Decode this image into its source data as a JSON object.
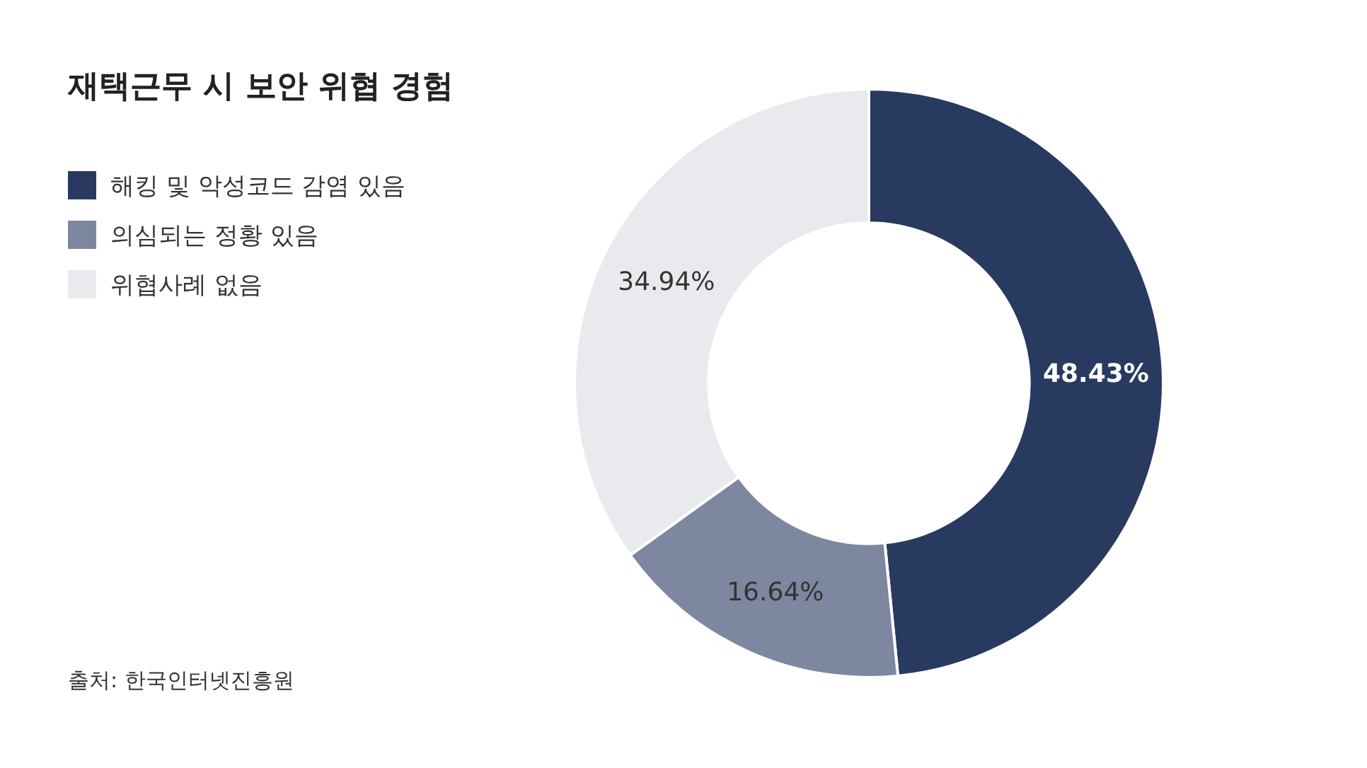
{
  "chart_data": {
    "type": "donut",
    "title": "재택근무 시 보안 위협 경험",
    "categories": [
      "해킹 및 악성코드 감염 있음",
      "의심되는 정황 있음",
      "위협사례 없음"
    ],
    "values": [
      48.43,
      16.64,
      34.94
    ],
    "colors": [
      "#283a60",
      "#7d87a0",
      "#e9eaee"
    ],
    "value_labels": [
      "48.43%",
      "16.64%",
      "34.94%"
    ],
    "legend": "top left",
    "annotations": [
      "출처: 한국인터넷진흥원"
    ]
  }
}
